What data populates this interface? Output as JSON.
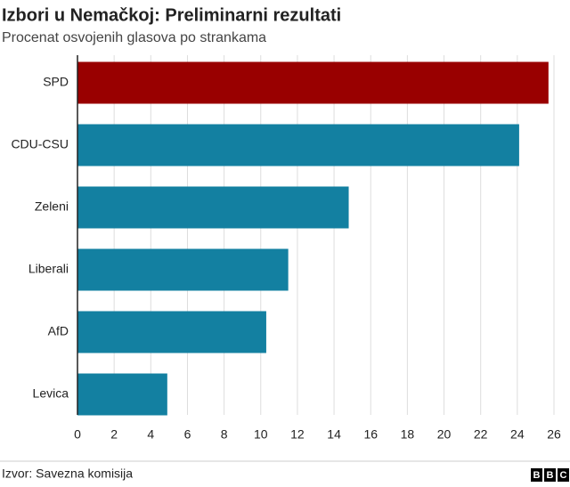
{
  "chart_data": {
    "type": "bar",
    "orientation": "horizontal",
    "title": "Izbori u Nemačkoj: Preliminarni rezultati",
    "subtitle": "Procenat osvojenih glasova po strankama",
    "categories": [
      "SPD",
      "CDU-CSU",
      "Zeleni",
      "Liberali",
      "AfD",
      "Levica"
    ],
    "values": [
      25.7,
      24.1,
      14.8,
      11.5,
      10.3,
      4.9
    ],
    "colors": [
      "#990000",
      "#1380a1",
      "#1380a1",
      "#1380a1",
      "#1380a1",
      "#1380a1"
    ],
    "xlim": [
      0,
      26
    ],
    "xticks": [
      0,
      2,
      4,
      6,
      8,
      10,
      12,
      14,
      16,
      18,
      20,
      22,
      24,
      26
    ],
    "grid": true,
    "source": "Izvor: Savezna komisija",
    "logo": [
      "B",
      "B",
      "C"
    ]
  }
}
